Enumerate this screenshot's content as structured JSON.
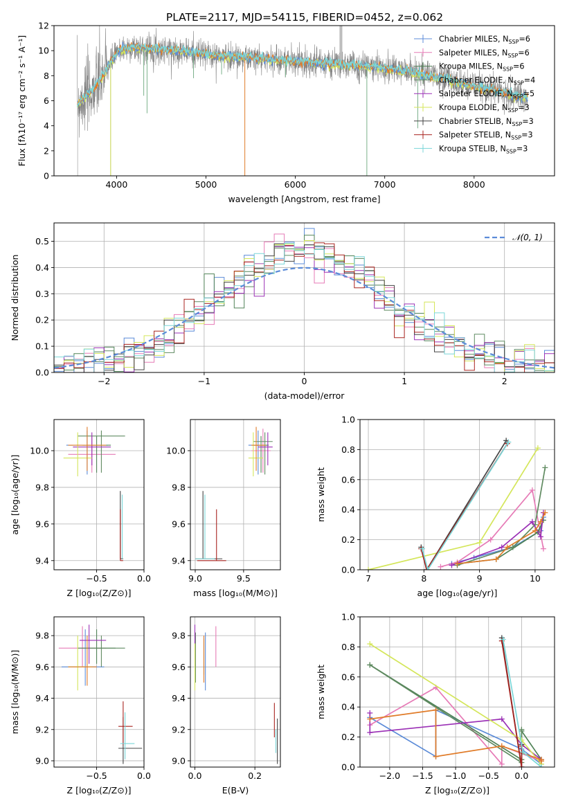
{
  "figure": {
    "title": "PLATE=2117, MJD=54115, FIBERID=0452, z=0.062"
  },
  "colors": {
    "Chabrier MILES": "#5b8bd8",
    "Salpeter MILES": "#e67ab6",
    "Kroupa MILES": "#508257",
    "Chabrier ELODIE": "#5f8a60",
    "Salpeter ELODIE": "#9a2fb5",
    "Kroupa ELODIE": "#d4e65a",
    "Chabrier STELIB": "#444444",
    "Salpeter STELIB": "#a8231f",
    "Kroupa STELIB": "#7ad6d8",
    "orange": "#e07b28",
    "data_gray": "#7f7f7f",
    "normal_dash": "#5b8bd8",
    "grid": "#b0b0b0"
  },
  "chart_data": [
    {
      "id": "spectrum",
      "type": "line",
      "title": "PLATE=2117, MJD=54115, FIBERID=0452, z=0.062",
      "xlabel": "wavelength [Angstrom, rest frame]",
      "ylabel": "Flux [fλ10⁻¹⁷ erg cm⁻² s⁻¹ A⁻¹]",
      "xlim": [
        3300,
        8900
      ],
      "ylim": [
        0,
        12
      ],
      "xticks": [
        4000,
        5000,
        6000,
        7000,
        8000
      ],
      "yticks": [
        0,
        2,
        4,
        6,
        8,
        10,
        12
      ],
      "grid": false,
      "legend_position": "top-right",
      "legend": [
        {
          "name": "Chabrier MILES",
          "nssp": "6"
        },
        {
          "name": "Salpeter MILES",
          "nssp": "6"
        },
        {
          "name": "Kroupa MILES",
          "nssp": "6"
        },
        {
          "name": "Chabrier ELODIE",
          "nssp": "4"
        },
        {
          "name": "Salpeter ELODIE",
          "nssp": "5"
        },
        {
          "name": "Kroupa ELODIE",
          "nssp": "3"
        },
        {
          "name": "Chabrier STELIB",
          "nssp": "3"
        },
        {
          "name": "Salpeter STELIB",
          "nssp": "3"
        },
        {
          "name": "Kroupa STELIB",
          "nssp": "3"
        }
      ],
      "continuum": {
        "x": [
          3560,
          3650,
          3750,
          3850,
          3950,
          4050,
          4150,
          4300,
          4500,
          4700,
          4900,
          5100,
          5300,
          5500,
          5700,
          5900,
          6100,
          6300,
          6500,
          6700,
          6900,
          7100,
          7300,
          7500,
          7700,
          7900,
          8100,
          8300,
          8500
        ],
        "y": [
          5.8,
          6.3,
          7.0,
          8.0,
          9.3,
          10.1,
          10.2,
          10.2,
          10.1,
          10.0,
          9.8,
          9.6,
          9.5,
          9.4,
          9.3,
          9.2,
          9.1,
          9.0,
          8.9,
          8.8,
          8.7,
          8.5,
          8.3,
          8.0,
          7.7,
          7.3,
          7.0,
          6.7,
          6.3
        ]
      },
      "absorption_lines": [
        {
          "x": 3934,
          "y": 0.0
        },
        {
          "x": 4304,
          "y": 6.4
        },
        {
          "x": 4341,
          "y": 5.0
        },
        {
          "x": 4861,
          "y": 7.8
        },
        {
          "x": 5175,
          "y": 8.1
        },
        {
          "x": 5435,
          "y": 0.0
        },
        {
          "x": 5890,
          "y": 7.9
        },
        {
          "x": 6800,
          "y": 0.0
        },
        {
          "x": 7370,
          "y": 3.8
        }
      ]
    },
    {
      "id": "histogram",
      "type": "bar",
      "xlabel": "(data-model)/error",
      "ylabel": "Normed distribution",
      "xlim": [
        -2.5,
        2.5
      ],
      "ylim": [
        0,
        0.57
      ],
      "xticks": [
        -2,
        -1,
        0,
        1,
        2
      ],
      "yticks": [
        0.0,
        0.1,
        0.2,
        0.3,
        0.4,
        0.5
      ],
      "grid": true,
      "bin_width": 0.1,
      "legend": [
        {
          "name": "𝒩(0, 1)"
        }
      ],
      "legend_position": "top-right",
      "normal": {
        "mean": 0,
        "sd": 1
      }
    },
    {
      "id": "age-vs-Z",
      "type": "scatter",
      "xlabel": "Z [log₁₀(Z/Z⊙)]",
      "ylabel": "age  [log₁₀(age/yr)]",
      "xlim": [
        -0.95,
        0.0
      ],
      "ylim": [
        9.35,
        10.17
      ],
      "xticks": [
        -0.5,
        0.0
      ],
      "yticks": [
        9.4,
        9.6,
        9.8,
        10.0
      ],
      "grid": true,
      "crosses": [
        {
          "c": "Chabrier MILES",
          "x": -0.6,
          "y": 10.03,
          "dx": [
            -0.22,
            0.22
          ],
          "dy": [
            -0.16,
            0.08
          ]
        },
        {
          "c": "Salpeter MILES",
          "x": -0.55,
          "y": 9.98,
          "dx": [
            -0.25,
            0.25
          ],
          "dy": [
            -0.1,
            0.1
          ]
        },
        {
          "c": "Kroupa MILES",
          "x": -0.5,
          "y": 10.03,
          "dx": [
            -0.15,
            0.15
          ],
          "dy": [
            -0.15,
            0.05
          ]
        },
        {
          "c": "Chabrier ELODIE",
          "x": -0.45,
          "y": 10.08,
          "dx": [
            -0.25,
            0.25
          ],
          "dy": [
            -0.2,
            0.03
          ]
        },
        {
          "c": "Salpeter ELODIE",
          "x": -0.55,
          "y": 10.02,
          "dx": [
            -0.2,
            0.2
          ],
          "dy": [
            -0.1,
            0.08
          ]
        },
        {
          "c": "Kroupa ELODIE",
          "x": -0.7,
          "y": 9.96,
          "dx": [
            -0.15,
            0.15
          ],
          "dy": [
            -0.1,
            0.14
          ]
        },
        {
          "c": "orange",
          "x": -0.6,
          "y": 10.03,
          "dx": [
            -0.2,
            0.2
          ],
          "dy": [
            -0.14,
            0.1
          ]
        },
        {
          "c": "Chabrier STELIB",
          "x": -0.25,
          "y": 9.41,
          "dx": [
            -0.0,
            0.03
          ],
          "dy": [
            0.0,
            0.37
          ]
        },
        {
          "c": "Salpeter STELIB",
          "x": -0.25,
          "y": 9.4,
          "dx": [
            -0.0,
            0.03
          ],
          "dy": [
            0.0,
            0.28
          ]
        },
        {
          "c": "Kroupa STELIB",
          "x": -0.23,
          "y": 9.41,
          "dx": [
            -0.0,
            0.0
          ],
          "dy": [
            0.0,
            0.35
          ]
        }
      ]
    },
    {
      "id": "age-vs-mass",
      "type": "scatter",
      "xlabel": "mass [log₁₀(M/M⊙)]",
      "ylabel": "",
      "xlim": [
        8.95,
        9.88
      ],
      "ylim": [
        9.35,
        10.17
      ],
      "xticks": [
        9.0,
        9.5
      ],
      "yticks": [
        9.4,
        9.6,
        9.8,
        10.0
      ],
      "grid": true,
      "crosses": [
        {
          "c": "Chabrier MILES",
          "x": 9.65,
          "y": 10.03,
          "dx": [
            -0.1,
            0.1
          ],
          "dy": [
            -0.16,
            0.08
          ]
        },
        {
          "c": "Salpeter MILES",
          "x": 9.7,
          "y": 10.0,
          "dx": [
            -0.12,
            0.08
          ],
          "dy": [
            -0.12,
            0.12
          ]
        },
        {
          "c": "Kroupa MILES",
          "x": 9.68,
          "y": 10.03,
          "dx": [
            -0.08,
            0.08
          ],
          "dy": [
            -0.15,
            0.05
          ]
        },
        {
          "c": "Chabrier ELODIE",
          "x": 9.72,
          "y": 10.05,
          "dx": [
            -0.12,
            0.08
          ],
          "dy": [
            -0.18,
            0.05
          ]
        },
        {
          "c": "Salpeter ELODIE",
          "x": 9.75,
          "y": 10.02,
          "dx": [
            -0.1,
            0.05
          ],
          "dy": [
            -0.1,
            0.08
          ]
        },
        {
          "c": "Kroupa ELODIE",
          "x": 9.6,
          "y": 9.96,
          "dx": [
            -0.05,
            0.1
          ],
          "dy": [
            -0.1,
            0.14
          ]
        },
        {
          "c": "orange",
          "x": 9.63,
          "y": 10.03,
          "dx": [
            -0.05,
            0.1
          ],
          "dy": [
            -0.14,
            0.1
          ]
        },
        {
          "c": "Chabrier STELIB",
          "x": 9.08,
          "y": 9.41,
          "dx": [
            -0.08,
            0.2
          ],
          "dy": [
            0.0,
            0.37
          ]
        },
        {
          "c": "Salpeter STELIB",
          "x": 9.22,
          "y": 9.4,
          "dx": [
            -0.2,
            0.1
          ],
          "dy": [
            0.0,
            0.28
          ]
        },
        {
          "c": "Kroupa STELIB",
          "x": 9.1,
          "y": 9.41,
          "dx": [
            -0.1,
            0.1
          ],
          "dy": [
            0.0,
            0.35
          ]
        }
      ]
    },
    {
      "id": "weight-vs-age",
      "type": "line",
      "xlabel": "age  [log₁₀(age/yr)]",
      "ylabel": "mass weight",
      "xlim": [
        6.85,
        10.35
      ],
      "ylim": [
        0,
        1.0
      ],
      "xticks": [
        7,
        8,
        9,
        10
      ],
      "yticks": [
        0.0,
        0.2,
        0.4,
        0.6,
        0.8,
        1.0
      ],
      "grid": true,
      "series": [
        {
          "c": "Chabrier MILES",
          "x": [
            8.5,
            8.9,
            9.6,
            10.1,
            10.15
          ],
          "y": [
            0.04,
            0.08,
            0.15,
            0.26,
            0.35
          ]
        },
        {
          "c": "Salpeter MILES",
          "x": [
            8.3,
            8.6,
            9.2,
            9.95,
            10.15
          ],
          "y": [
            0.02,
            0.05,
            0.2,
            0.53,
            0.14
          ]
        },
        {
          "c": "Kroupa MILES",
          "x": [
            8.6,
            9.3,
            10.05,
            10.15
          ],
          "y": [
            0.04,
            0.07,
            0.25,
            0.33
          ]
        },
        {
          "c": "Chabrier ELODIE",
          "x": [
            8.6,
            9.6,
            10.0,
            10.18
          ],
          "y": [
            0.03,
            0.15,
            0.3,
            0.68
          ]
        },
        {
          "c": "Salpeter ELODIE",
          "x": [
            8.5,
            9.4,
            9.95,
            10.1,
            10.15
          ],
          "y": [
            0.03,
            0.15,
            0.32,
            0.22,
            0.38
          ]
        },
        {
          "c": "Kroupa ELODIE",
          "x": [
            7.0,
            9.0,
            10.05
          ],
          "y": [
            0.0,
            0.18,
            0.81
          ]
        },
        {
          "c": "orange",
          "x": [
            8.6,
            9.3,
            9.5,
            10.0,
            10.1,
            10.18
          ],
          "y": [
            0.04,
            0.07,
            0.15,
            0.26,
            0.32,
            0.38
          ]
        },
        {
          "c": "Chabrier STELIB",
          "x": [
            7.95,
            8.05,
            9.48
          ],
          "y": [
            0.15,
            0.0,
            0.86
          ]
        },
        {
          "c": "Salpeter STELIB",
          "x": [
            7.95,
            8.05,
            9.5
          ],
          "y": [
            0.14,
            0.0,
            0.84
          ]
        },
        {
          "c": "Kroupa STELIB",
          "x": [
            7.97,
            8.07,
            9.52
          ],
          "y": [
            0.14,
            0.0,
            0.85
          ]
        }
      ]
    },
    {
      "id": "mass-vs-Z",
      "type": "scatter",
      "xlabel": "Z [log₁₀(Z/Z⊙)]",
      "ylabel": "mass [log₁₀(M/M⊙)]",
      "xlim": [
        -0.95,
        0.0
      ],
      "ylim": [
        8.96,
        9.92
      ],
      "xticks": [
        -0.5,
        0.0
      ],
      "yticks": [
        9.0,
        9.2,
        9.4,
        9.6,
        9.8
      ],
      "grid": true,
      "crosses": [
        {
          "c": "Chabrier MILES",
          "x": -0.62,
          "y": 9.6,
          "dx": [
            -0.25,
            0.2
          ],
          "dy": [
            -0.12,
            0.24
          ]
        },
        {
          "c": "Salpeter MILES",
          "x": -0.65,
          "y": 9.72,
          "dx": [
            -0.25,
            0.25
          ],
          "dy": [
            -0.12,
            0.14
          ]
        },
        {
          "c": "Kroupa MILES",
          "x": -0.5,
          "y": 9.72,
          "dx": [
            -0.2,
            0.2
          ],
          "dy": [
            -0.1,
            0.12
          ]
        },
        {
          "c": "Chabrier ELODIE",
          "x": -0.45,
          "y": 9.72,
          "dx": [
            -0.15,
            0.25
          ],
          "dy": [
            -0.12,
            0.08
          ]
        },
        {
          "c": "Salpeter ELODIE",
          "x": -0.58,
          "y": 9.77,
          "dx": [
            -0.1,
            0.18
          ],
          "dy": [
            -0.15,
            0.1
          ]
        },
        {
          "c": "Kroupa ELODIE",
          "x": -0.7,
          "y": 9.6,
          "dx": [
            -0.1,
            0.15
          ],
          "dy": [
            -0.15,
            0.2
          ]
        },
        {
          "c": "orange",
          "x": -0.6,
          "y": 9.6,
          "dx": [
            -0.2,
            0.1
          ],
          "dy": [
            -0.12,
            0.2
          ]
        },
        {
          "c": "Chabrier STELIB",
          "x": -0.22,
          "y": 9.08,
          "dx": [
            -0.05,
            0.2
          ],
          "dy": [
            -0.1,
            0.2
          ]
        },
        {
          "c": "Salpeter STELIB",
          "x": -0.22,
          "y": 9.22,
          "dx": [
            -0.05,
            0.1
          ],
          "dy": [
            -0.12,
            0.16
          ]
        },
        {
          "c": "Kroupa STELIB",
          "x": -0.2,
          "y": 9.11,
          "dx": [
            -0.05,
            0.1
          ],
          "dy": [
            -0.1,
            0.2
          ]
        }
      ]
    },
    {
      "id": "mass-vs-EBV",
      "type": "scatter",
      "xlabel": "E(B-V)",
      "ylabel": "",
      "xlim": [
        -0.015,
        0.285
      ],
      "ylim": [
        8.96,
        9.92
      ],
      "xticks": [
        0.0,
        0.2
      ],
      "yticks": [
        9.0,
        9.2,
        9.4,
        9.6,
        9.8
      ],
      "grid": true,
      "vlines": [
        {
          "c": "Chabrier MILES",
          "x": 0.035,
          "y0": 9.45,
          "y1": 9.82
        },
        {
          "c": "Salpeter MILES",
          "x": 0.07,
          "y0": 9.6,
          "y1": 9.86
        },
        {
          "c": "Kroupa MILES",
          "x": 0.03,
          "y0": 9.55,
          "y1": 9.78
        },
        {
          "c": "Chabrier ELODIE",
          "x": 0.002,
          "y0": 9.5,
          "y1": 9.82
        },
        {
          "c": "Salpeter ELODIE",
          "x": 0.0,
          "y0": 9.6,
          "y1": 9.87
        },
        {
          "c": "Kroupa ELODIE",
          "x": 0.0,
          "y0": 9.45,
          "y1": 9.75
        },
        {
          "c": "orange",
          "x": 0.03,
          "y0": 9.5,
          "y1": 9.8
        },
        {
          "c": "Chabrier STELIB",
          "x": 0.275,
          "y0": 8.98,
          "y1": 9.27
        },
        {
          "c": "Salpeter STELIB",
          "x": 0.265,
          "y0": 9.15,
          "y1": 9.37
        },
        {
          "c": "Kroupa STELIB",
          "x": 0.27,
          "y0": 9.05,
          "y1": 9.2
        }
      ]
    },
    {
      "id": "weight-vs-Z",
      "type": "line",
      "xlabel": "Z [log₁₀(Z/Z⊙)]",
      "ylabel": "mass weight",
      "xlim": [
        -2.45,
        0.5
      ],
      "ylim": [
        0,
        1.0
      ],
      "xticks": [
        -2.0,
        -1.5,
        -1.0,
        -0.5,
        0.0
      ],
      "yticks": [
        0.0,
        0.2,
        0.4,
        0.6,
        0.8,
        1.0
      ],
      "grid": true,
      "series": [
        {
          "c": "Chabrier MILES",
          "x": [
            -2.3,
            -1.3,
            -1.3,
            0.0,
            0.3
          ],
          "y": [
            0.33,
            0.07,
            0.38,
            0.12,
            0.02
          ]
        },
        {
          "c": "Salpeter MILES",
          "x": [
            -2.3,
            -1.3,
            -0.3,
            -0.3,
            0.3
          ],
          "y": [
            0.28,
            0.53,
            0.02,
            0.14,
            0.04
          ]
        },
        {
          "c": "Kroupa MILES",
          "x": [
            -2.3,
            0.0,
            0.0,
            0.3
          ],
          "y": [
            0.68,
            0.05,
            0.24,
            0.05
          ]
        },
        {
          "c": "Chabrier ELODIE",
          "x": [
            -2.3,
            0.0,
            0.0
          ],
          "y": [
            0.68,
            0.03,
            0.25
          ]
        },
        {
          "c": "Salpeter ELODIE",
          "x": [
            -2.3,
            -2.3,
            -0.3,
            0.0,
            0.3
          ],
          "y": [
            0.36,
            0.23,
            0.32,
            0.15,
            0.05
          ]
        },
        {
          "c": "Kroupa ELODIE",
          "x": [
            -2.3,
            0.0,
            0.3
          ],
          "y": [
            0.82,
            0.18,
            0.02
          ]
        },
        {
          "c": "orange",
          "x": [
            -2.3,
            -1.3,
            -1.3,
            -0.3,
            0.3,
            0.3
          ],
          "y": [
            0.32,
            0.38,
            0.07,
            0.14,
            0.05,
            0.04
          ]
        },
        {
          "c": "Chabrier STELIB",
          "x": [
            -0.3,
            0.0,
            0.0
          ],
          "y": [
            0.86,
            0.0,
            0.15
          ]
        },
        {
          "c": "Salpeter STELIB",
          "x": [
            -0.3,
            0.0,
            0.0
          ],
          "y": [
            0.84,
            0.0,
            0.14
          ]
        },
        {
          "c": "Kroupa STELIB",
          "x": [
            -0.28,
            0.02,
            0.3
          ],
          "y": [
            0.85,
            0.1,
            0.0
          ]
        }
      ]
    }
  ]
}
